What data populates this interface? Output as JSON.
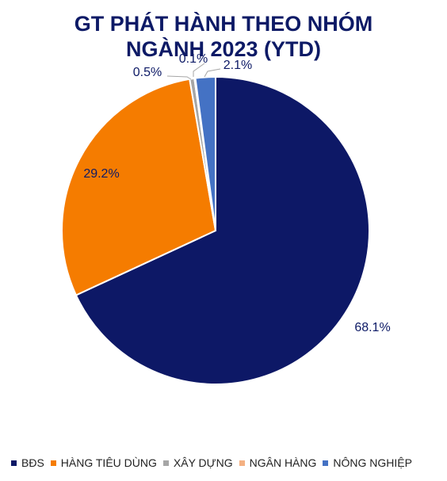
{
  "chart_data": {
    "type": "pie",
    "title_lines": [
      "GT PHÁT HÀNH THEO NHÓM",
      "NGÀNH 2023 (YTD)"
    ],
    "start_angle_deg": 0,
    "direction": "clockwise",
    "slices": [
      {
        "name": "BĐS",
        "value": 68.1,
        "label": "68.1%",
        "color": "#0d1866"
      },
      {
        "name": "HÀNG TIÊU DÙNG",
        "value": 29.2,
        "label": "29.2%",
        "color": "#f57c00"
      },
      {
        "name": "XÂY DỰNG",
        "value": 0.5,
        "label": "0.5%",
        "color": "#a6a6a6"
      },
      {
        "name": "NGÂN HÀNG",
        "value": 0.1,
        "label": "0.1%",
        "color": "#f4b183"
      },
      {
        "name": "NÔNG NGHIỆP",
        "value": 2.1,
        "label": "2.1%",
        "color": "#4472c4"
      }
    ],
    "legend_position": "bottom"
  }
}
